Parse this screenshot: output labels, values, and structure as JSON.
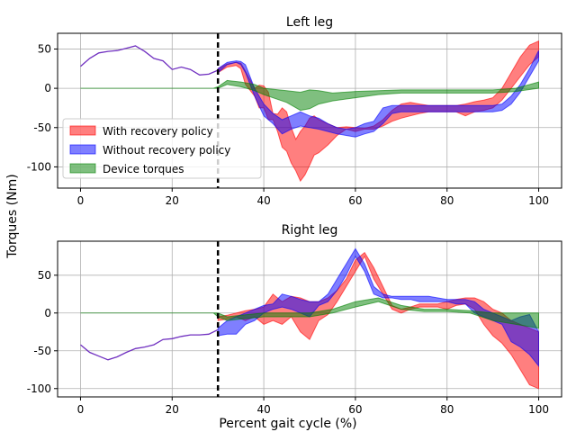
{
  "figure": {
    "ylabel": "Torques (Nm)",
    "xlabel": "Percent gait cycle (%)"
  },
  "colors": {
    "with": "#ff0000",
    "without": "#0000ff",
    "device": "#008000",
    "pre": "#7030c0"
  },
  "chart_data": [
    {
      "type": "area",
      "title": "Left leg",
      "xlabel": "",
      "ylabel": "Torques (Nm)",
      "xlim": [
        -5,
        105
      ],
      "ylim": [
        -127,
        70
      ],
      "xticks": [
        0,
        20,
        40,
        60,
        80,
        100
      ],
      "yticks": [
        -100,
        -50,
        0,
        50
      ],
      "grid": true,
      "vline_x": 30,
      "legend": {
        "placement": "lower-left",
        "entries": [
          "With recovery policy",
          "Without recovery policy",
          "Device torques"
        ]
      },
      "pre_line": {
        "x": [
          0,
          2,
          4,
          6,
          8,
          10,
          12,
          14,
          16,
          18,
          20,
          22,
          24,
          26,
          28,
          30
        ],
        "y": [
          28,
          38,
          45,
          47,
          48,
          51,
          54,
          47,
          38,
          35,
          24,
          27,
          24,
          17,
          18,
          23
        ]
      },
      "series": [
        {
          "name": "With recovery policy",
          "x": [
            30,
            32,
            34,
            35,
            36,
            38,
            39,
            40,
            41,
            42,
            43,
            44,
            45,
            46,
            47,
            48,
            49,
            50,
            51,
            52,
            54,
            56,
            58,
            60,
            62,
            64,
            66,
            68,
            70,
            72,
            74,
            76,
            78,
            80,
            82,
            84,
            86,
            88,
            90,
            92,
            94,
            96,
            98,
            100
          ],
          "upper": [
            25,
            31,
            33,
            32,
            22,
            0,
            4,
            3,
            -5,
            -32,
            -33,
            -25,
            -30,
            -50,
            -65,
            -55,
            -48,
            -38,
            -35,
            -40,
            -45,
            -50,
            -49,
            -50,
            -51,
            -48,
            -40,
            -28,
            -20,
            -18,
            -20,
            -22,
            -22,
            -22,
            -22,
            -20,
            -17,
            -15,
            -12,
            0,
            20,
            40,
            55,
            60
          ],
          "lower": [
            20,
            27,
            29,
            25,
            5,
            -10,
            -25,
            -25,
            -40,
            -40,
            -55,
            -75,
            -80,
            -95,
            -105,
            -118,
            -110,
            -98,
            -85,
            -82,
            -72,
            -60,
            -52,
            -55,
            -52,
            -52,
            -48,
            -42,
            -38,
            -35,
            -32,
            -30,
            -30,
            -30,
            -30,
            -35,
            -30,
            -28,
            -25,
            -15,
            0,
            15,
            30,
            40
          ]
        },
        {
          "name": "Without recovery policy",
          "x": [
            30,
            32,
            34,
            35,
            36,
            38,
            40,
            42,
            44,
            46,
            48,
            50,
            52,
            54,
            56,
            58,
            60,
            62,
            64,
            66,
            68,
            70,
            72,
            74,
            76,
            78,
            80,
            82,
            84,
            86,
            88,
            90,
            92,
            94,
            96,
            98,
            100
          ],
          "upper": [
            25,
            33,
            35,
            34,
            30,
            0,
            -20,
            -32,
            -40,
            -35,
            -30,
            -35,
            -38,
            -45,
            -50,
            -52,
            -50,
            -45,
            -42,
            -25,
            -22,
            -22,
            -22,
            -22,
            -22,
            -22,
            -22,
            -22,
            -22,
            -22,
            -22,
            -22,
            -20,
            -10,
            5,
            25,
            48
          ],
          "lower": [
            20,
            30,
            33,
            30,
            20,
            -10,
            -35,
            -45,
            -58,
            -52,
            -48,
            -50,
            -52,
            -55,
            -58,
            -60,
            -62,
            -58,
            -55,
            -45,
            -32,
            -30,
            -30,
            -30,
            -30,
            -30,
            -30,
            -30,
            -30,
            -30,
            -30,
            -30,
            -28,
            -20,
            -5,
            15,
            35
          ]
        },
        {
          "name": "Device torques",
          "x": [
            0,
            5,
            10,
            15,
            20,
            25,
            29,
            30,
            32,
            35,
            38,
            40,
            45,
            48,
            50,
            52,
            55,
            60,
            65,
            70,
            75,
            80,
            85,
            90,
            95,
            100
          ],
          "upper": [
            0,
            0,
            0,
            0,
            0,
            0,
            0,
            2,
            10,
            8,
            5,
            0,
            -3,
            -5,
            -2,
            -3,
            -6,
            -4,
            -3,
            -2,
            -2,
            -2,
            -2,
            -2,
            0,
            8
          ],
          "lower": [
            0,
            0,
            0,
            0,
            0,
            0,
            0,
            0,
            5,
            2,
            -3,
            -8,
            -18,
            -28,
            -26,
            -20,
            -16,
            -12,
            -8,
            -6,
            -6,
            -6,
            -6,
            -6,
            -4,
            0
          ]
        }
      ]
    },
    {
      "type": "area",
      "title": "Right leg",
      "xlabel": "Percent gait cycle (%)",
      "ylabel": "Torques (Nm)",
      "xlim": [
        -5,
        105
      ],
      "ylim": [
        -111,
        95
      ],
      "xticks": [
        0,
        20,
        40,
        60,
        80,
        100
      ],
      "yticks": [
        -100,
        -50,
        0,
        50
      ],
      "grid": true,
      "vline_x": 30,
      "pre_line": {
        "x": [
          0,
          2,
          4,
          6,
          8,
          10,
          12,
          14,
          16,
          18,
          20,
          22,
          24,
          26,
          28,
          30
        ],
        "y": [
          -42,
          -52,
          -57,
          -62,
          -58,
          -52,
          -47,
          -45,
          -42,
          -35,
          -34,
          -31,
          -29,
          -29,
          -28,
          -22
        ]
      },
      "series": [
        {
          "name": "With recovery policy",
          "x": [
            30,
            32,
            34,
            36,
            38,
            40,
            42,
            44,
            46,
            48,
            50,
            52,
            54,
            56,
            58,
            60,
            62,
            64,
            66,
            68,
            70,
            72,
            74,
            76,
            78,
            80,
            82,
            84,
            86,
            88,
            90,
            92,
            94,
            96,
            98,
            100
          ],
          "upper": [
            -5,
            -3,
            0,
            3,
            5,
            8,
            25,
            15,
            22,
            20,
            15,
            15,
            20,
            30,
            45,
            70,
            80,
            60,
            35,
            10,
            5,
            8,
            12,
            12,
            12,
            15,
            18,
            20,
            20,
            15,
            5,
            0,
            -10,
            -15,
            -20,
            -25
          ],
          "lower": [
            -10,
            -8,
            -5,
            -10,
            -5,
            -15,
            -10,
            -15,
            -5,
            -25,
            -35,
            -10,
            -2,
            15,
            35,
            55,
            75,
            45,
            25,
            5,
            0,
            5,
            8,
            8,
            8,
            5,
            10,
            12,
            5,
            -15,
            -30,
            -40,
            -55,
            -75,
            -95,
            -100
          ]
        },
        {
          "name": "Without recovery policy",
          "x": [
            30,
            32,
            34,
            36,
            38,
            40,
            42,
            44,
            46,
            48,
            50,
            52,
            54,
            56,
            58,
            60,
            62,
            64,
            66,
            68,
            70,
            72,
            74,
            76,
            78,
            80,
            82,
            84,
            86,
            88,
            90,
            92,
            94,
            96,
            98,
            100
          ],
          "upper": [
            -20,
            -10,
            -5,
            0,
            5,
            10,
            12,
            25,
            22,
            18,
            15,
            15,
            25,
            45,
            65,
            85,
            65,
            35,
            25,
            22,
            22,
            22,
            22,
            22,
            20,
            18,
            18,
            18,
            15,
            5,
            0,
            -5,
            -10,
            -5,
            -2,
            -25
          ],
          "lower": [
            -30,
            -28,
            -28,
            -15,
            -10,
            0,
            5,
            8,
            5,
            0,
            -5,
            10,
            15,
            30,
            50,
            75,
            55,
            25,
            20,
            20,
            18,
            18,
            15,
            15,
            15,
            15,
            12,
            12,
            0,
            -5,
            -10,
            -15,
            -38,
            -45,
            -55,
            -70
          ]
        },
        {
          "name": "Device torques",
          "x": [
            0,
            5,
            10,
            15,
            20,
            25,
            29,
            30,
            32,
            35,
            40,
            45,
            50,
            55,
            60,
            65,
            70,
            75,
            80,
            85,
            90,
            95,
            100
          ],
          "upper": [
            0,
            0,
            0,
            0,
            0,
            0,
            0,
            0,
            -5,
            -3,
            0,
            0,
            0,
            5,
            15,
            20,
            10,
            5,
            5,
            3,
            0,
            0,
            0
          ],
          "lower": [
            0,
            0,
            0,
            0,
            0,
            0,
            0,
            -5,
            -10,
            -8,
            -5,
            -5,
            -5,
            0,
            8,
            15,
            5,
            2,
            2,
            0,
            -10,
            -15,
            -20
          ]
        }
      ]
    }
  ]
}
